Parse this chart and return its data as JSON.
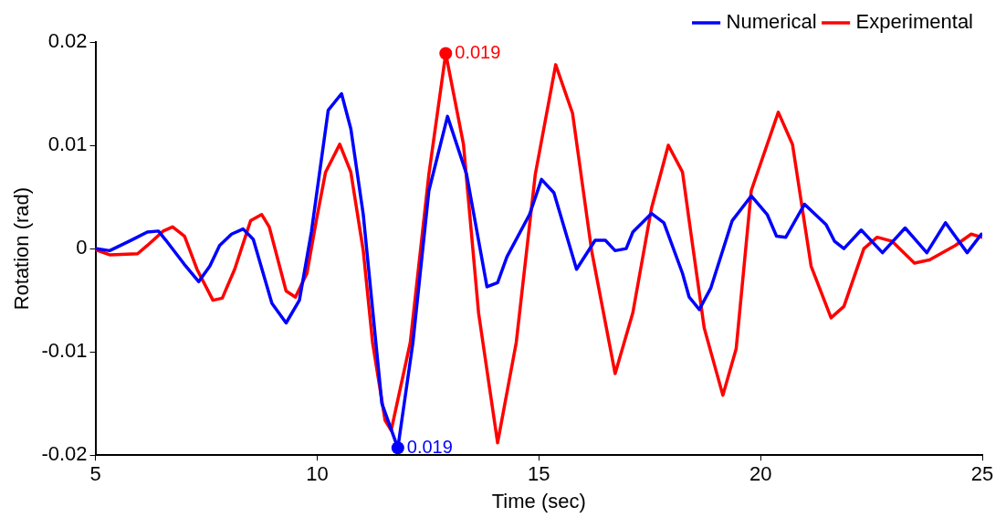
{
  "chart_data": {
    "type": "line",
    "xlabel": "Time (sec)",
    "ylabel": "Rotation (rad)",
    "xlim": [
      5,
      25
    ],
    "xticks": [
      5,
      10,
      15,
      20,
      25
    ],
    "ylim": [
      -0.02,
      0.02
    ],
    "yticks": [
      -0.02,
      -0.01,
      0,
      0.01,
      0.02
    ],
    "legend": "top right",
    "grid": false,
    "marker": "none",
    "line_style": "solid",
    "series": [
      {
        "name": "Numerical",
        "color": "#0000ff",
        "x": [
          5,
          5.32,
          5.8,
          6.17,
          6.42,
          6.59,
          7.0,
          7.33,
          7.58,
          7.8,
          8.07,
          8.33,
          8.56,
          8.98,
          9.3,
          9.6,
          9.87,
          10.25,
          10.55,
          10.76,
          11.04,
          11.46,
          11.82,
          12.16,
          12.52,
          12.94,
          13.37,
          13.83,
          14.07,
          14.28,
          14.79,
          15.06,
          15.34,
          15.85,
          16.27,
          16.5,
          16.72,
          16.97,
          17.12,
          17.54,
          17.82,
          18.24,
          18.39,
          18.62,
          18.88,
          19.36,
          19.79,
          20.15,
          20.36,
          20.57,
          20.99,
          21.48,
          21.67,
          21.88,
          22.27,
          22.75,
          23.26,
          23.75,
          24.17,
          24.66,
          24.98
        ],
        "values": [
          0,
          -0.0002,
          0.0008,
          0.0016,
          0.0017,
          0.0008,
          -0.0015,
          -0.0032,
          -0.0017,
          0.0003,
          0.0014,
          0.0019,
          0.0009,
          -0.0053,
          -0.0072,
          -0.005,
          0.0016,
          0.0134,
          0.015,
          0.0116,
          0.0033,
          -0.015,
          -0.0193,
          -0.0091,
          0.0056,
          0.0128,
          0.0072,
          -0.0037,
          -0.0033,
          -0.0008,
          0.0033,
          0.0067,
          0.0054,
          -0.002,
          0.0008,
          0.0008,
          -0.0002,
          0,
          0.0016,
          0.0034,
          0.0025,
          -0.0024,
          -0.0047,
          -0.0059,
          -0.0038,
          0.0027,
          0.0051,
          0.0033,
          0.0012,
          0.0011,
          0.0043,
          0.0023,
          0.0007,
          0,
          0.0018,
          -0.0004,
          0.002,
          -0.0004,
          0.0025,
          -0.0004,
          0.0014
        ]
      },
      {
        "name": "Experimental",
        "color": "#ff0000",
        "x": [
          5,
          5.32,
          5.95,
          6.17,
          6.53,
          6.74,
          7.01,
          7.29,
          7.65,
          7.86,
          8.14,
          8.5,
          8.75,
          8.92,
          9.3,
          9.51,
          9.77,
          9.98,
          10.19,
          10.51,
          10.76,
          11.04,
          11.25,
          11.53,
          11.67,
          12.1,
          12.52,
          12.9,
          13.3,
          13.64,
          14.07,
          14.49,
          14.92,
          15.38,
          15.76,
          16.19,
          16.72,
          17.12,
          17.54,
          17.92,
          18.24,
          18.39,
          18.73,
          19.15,
          19.45,
          19.79,
          20.4,
          20.72,
          21.14,
          21.59,
          21.88,
          22.33,
          22.63,
          22.97,
          23.47,
          23.81,
          24.39,
          24.75,
          24.98
        ],
        "values": [
          -0.0001,
          -0.0006,
          -0.0005,
          0.0003,
          0.0017,
          0.0021,
          0.0012,
          -0.002,
          -0.005,
          -0.0048,
          -0.002,
          0.0027,
          0.0033,
          0.0021,
          -0.0041,
          -0.0047,
          -0.0024,
          0.0027,
          0.0074,
          0.0101,
          0.0074,
          -0.0002,
          -0.0091,
          -0.0166,
          -0.0176,
          -0.0091,
          0.0072,
          0.0189,
          0.0101,
          -0.0062,
          -0.0188,
          -0.0091,
          0.0072,
          0.0178,
          0.0131,
          -0.0002,
          -0.0121,
          -0.0062,
          0.0039,
          0.01,
          0.0074,
          0.0027,
          -0.0077,
          -0.0142,
          -0.0097,
          0.0056,
          0.0132,
          0.0101,
          -0.0017,
          -0.0067,
          -0.0056,
          0,
          0.0011,
          0.0007,
          -0.0014,
          -0.0011,
          0.0003,
          0.0014,
          0.0011
        ]
      }
    ],
    "annotations": [
      {
        "text": "0.019",
        "x": 11.82,
        "y": -0.0193
      },
      {
        "text": "0.019",
        "x": 12.9,
        "y": 0.0189
      }
    ]
  }
}
